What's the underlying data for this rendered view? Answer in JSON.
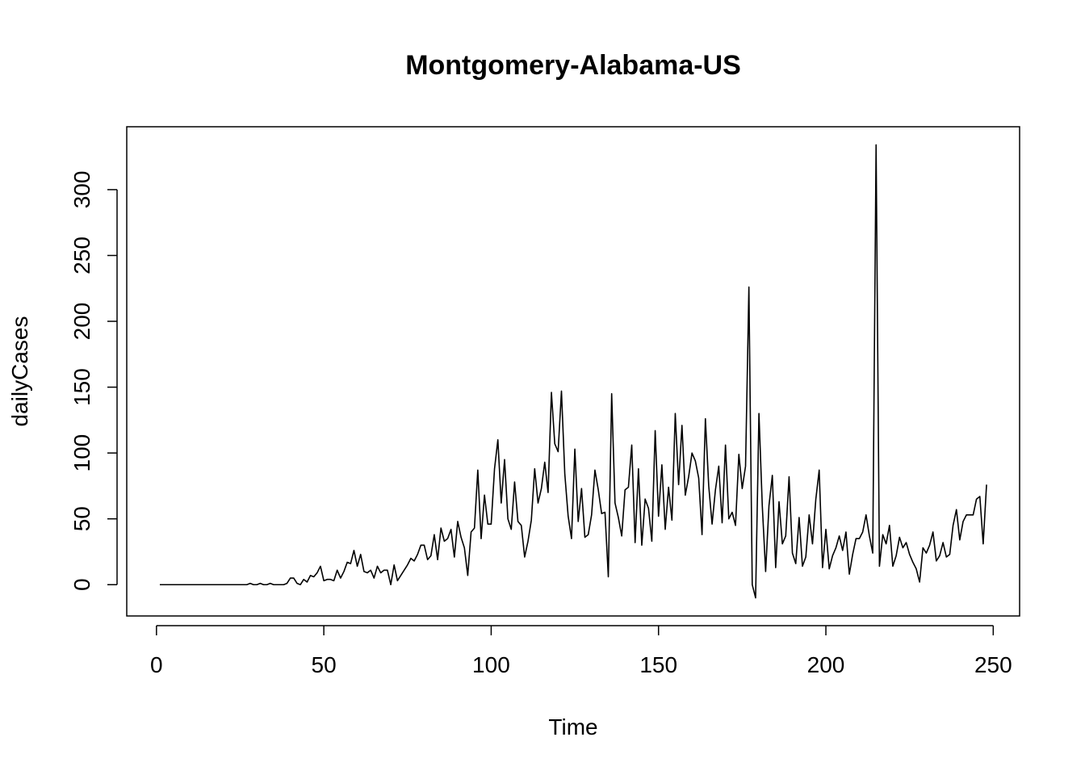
{
  "chart_data": {
    "type": "line",
    "title": "Montgomery-Alabama-US",
    "x_label": "Time",
    "y_label": "dailyCases",
    "xlim": [
      -8.88,
      257.88
    ],
    "ylim": [
      -23.76,
      347.76
    ],
    "xticks": [
      0,
      50,
      100,
      150,
      200,
      250
    ],
    "yticks": [
      0,
      50,
      100,
      150,
      200,
      250,
      300
    ],
    "color": "#000000",
    "x": [
      1,
      2,
      3,
      4,
      5,
      6,
      7,
      8,
      9,
      10,
      11,
      12,
      13,
      14,
      15,
      16,
      17,
      18,
      19,
      20,
      21,
      22,
      23,
      24,
      25,
      26,
      27,
      28,
      29,
      30,
      31,
      32,
      33,
      34,
      35,
      36,
      37,
      38,
      39,
      40,
      41,
      42,
      43,
      44,
      45,
      46,
      47,
      48,
      49,
      50,
      51,
      52,
      53,
      54,
      55,
      56,
      57,
      58,
      59,
      60,
      61,
      62,
      63,
      64,
      65,
      66,
      67,
      68,
      69,
      70,
      71,
      72,
      73,
      74,
      75,
      76,
      77,
      78,
      79,
      80,
      81,
      82,
      83,
      84,
      85,
      86,
      87,
      88,
      89,
      90,
      91,
      92,
      93,
      94,
      95,
      96,
      97,
      98,
      99,
      100,
      101,
      102,
      103,
      104,
      105,
      106,
      107,
      108,
      109,
      110,
      111,
      112,
      113,
      114,
      115,
      116,
      117,
      118,
      119,
      120,
      121,
      122,
      123,
      124,
      125,
      126,
      127,
      128,
      129,
      130,
      131,
      132,
      133,
      134,
      135,
      136,
      137,
      138,
      139,
      140,
      141,
      142,
      143,
      144,
      145,
      146,
      147,
      148,
      149,
      150,
      151,
      152,
      153,
      154,
      155,
      156,
      157,
      158,
      159,
      160,
      161,
      162,
      163,
      164,
      165,
      166,
      167,
      168,
      169,
      170,
      171,
      172,
      173,
      174,
      175,
      176,
      177,
      178,
      179,
      180,
      181,
      182,
      183,
      184,
      185,
      186,
      187,
      188,
      189,
      190,
      191,
      192,
      193,
      194,
      195,
      196,
      197,
      198,
      199,
      200,
      201,
      202,
      203,
      204,
      205,
      206,
      207,
      208,
      209,
      210,
      211,
      212,
      213,
      214,
      215,
      216,
      217,
      218,
      219,
      220,
      221,
      222,
      223,
      224,
      225,
      226,
      227,
      228,
      229,
      230,
      231,
      232,
      233,
      234,
      235,
      236,
      237,
      238,
      239,
      240,
      241,
      242,
      243,
      244,
      245,
      246,
      247,
      248
    ],
    "values": [
      0,
      0,
      0,
      0,
      0,
      0,
      0,
      0,
      0,
      0,
      0,
      0,
      0,
      0,
      0,
      0,
      0,
      0,
      0,
      0,
      0,
      0,
      0,
      0,
      0,
      0,
      0,
      1,
      0,
      0,
      1,
      0,
      0,
      1,
      0,
      0,
      0,
      0,
      1,
      5,
      5,
      1,
      0,
      4,
      2,
      7,
      6,
      9,
      14,
      3,
      4,
      4,
      3,
      11,
      5,
      10,
      17,
      16,
      26,
      14,
      23,
      10,
      9,
      11,
      5,
      14,
      9,
      11,
      11,
      0,
      15,
      3,
      7,
      11,
      15,
      20,
      18,
      23,
      30,
      30,
      19,
      22,
      38,
      19,
      43,
      33,
      35,
      42,
      21,
      48,
      36,
      28,
      7,
      40,
      43,
      87,
      35,
      68,
      46,
      46,
      88,
      110,
      62,
      95,
      50,
      42,
      78,
      48,
      45,
      21,
      33,
      49,
      88,
      62,
      73,
      93,
      70,
      146,
      107,
      101,
      147,
      84,
      52,
      35,
      103,
      48,
      73,
      36,
      38,
      53,
      87,
      72,
      54,
      55,
      6,
      145,
      62,
      51,
      37,
      72,
      74,
      106,
      32,
      88,
      30,
      65,
      58,
      33,
      117,
      52,
      91,
      42,
      74,
      49,
      130,
      76,
      121,
      68,
      82,
      100,
      94,
      81,
      38,
      126,
      75,
      46,
      72,
      90,
      47,
      106,
      50,
      55,
      45,
      99,
      73,
      90,
      226,
      0,
      -10,
      130,
      60,
      10,
      60,
      83,
      13,
      63,
      31,
      37,
      82,
      24,
      16,
      51,
      14,
      21,
      53,
      31,
      65,
      87,
      13,
      42,
      12,
      22,
      28,
      37,
      26,
      40,
      8,
      23,
      35,
      35,
      40,
      53,
      37,
      24,
      334,
      14,
      38,
      31,
      45,
      14,
      22,
      36,
      28,
      32,
      23,
      17,
      12,
      2,
      28,
      24,
      30,
      40,
      18,
      22,
      32,
      21,
      23,
      45,
      57,
      34,
      48,
      53,
      53,
      53,
      65,
      67,
      31,
      76
    ]
  }
}
